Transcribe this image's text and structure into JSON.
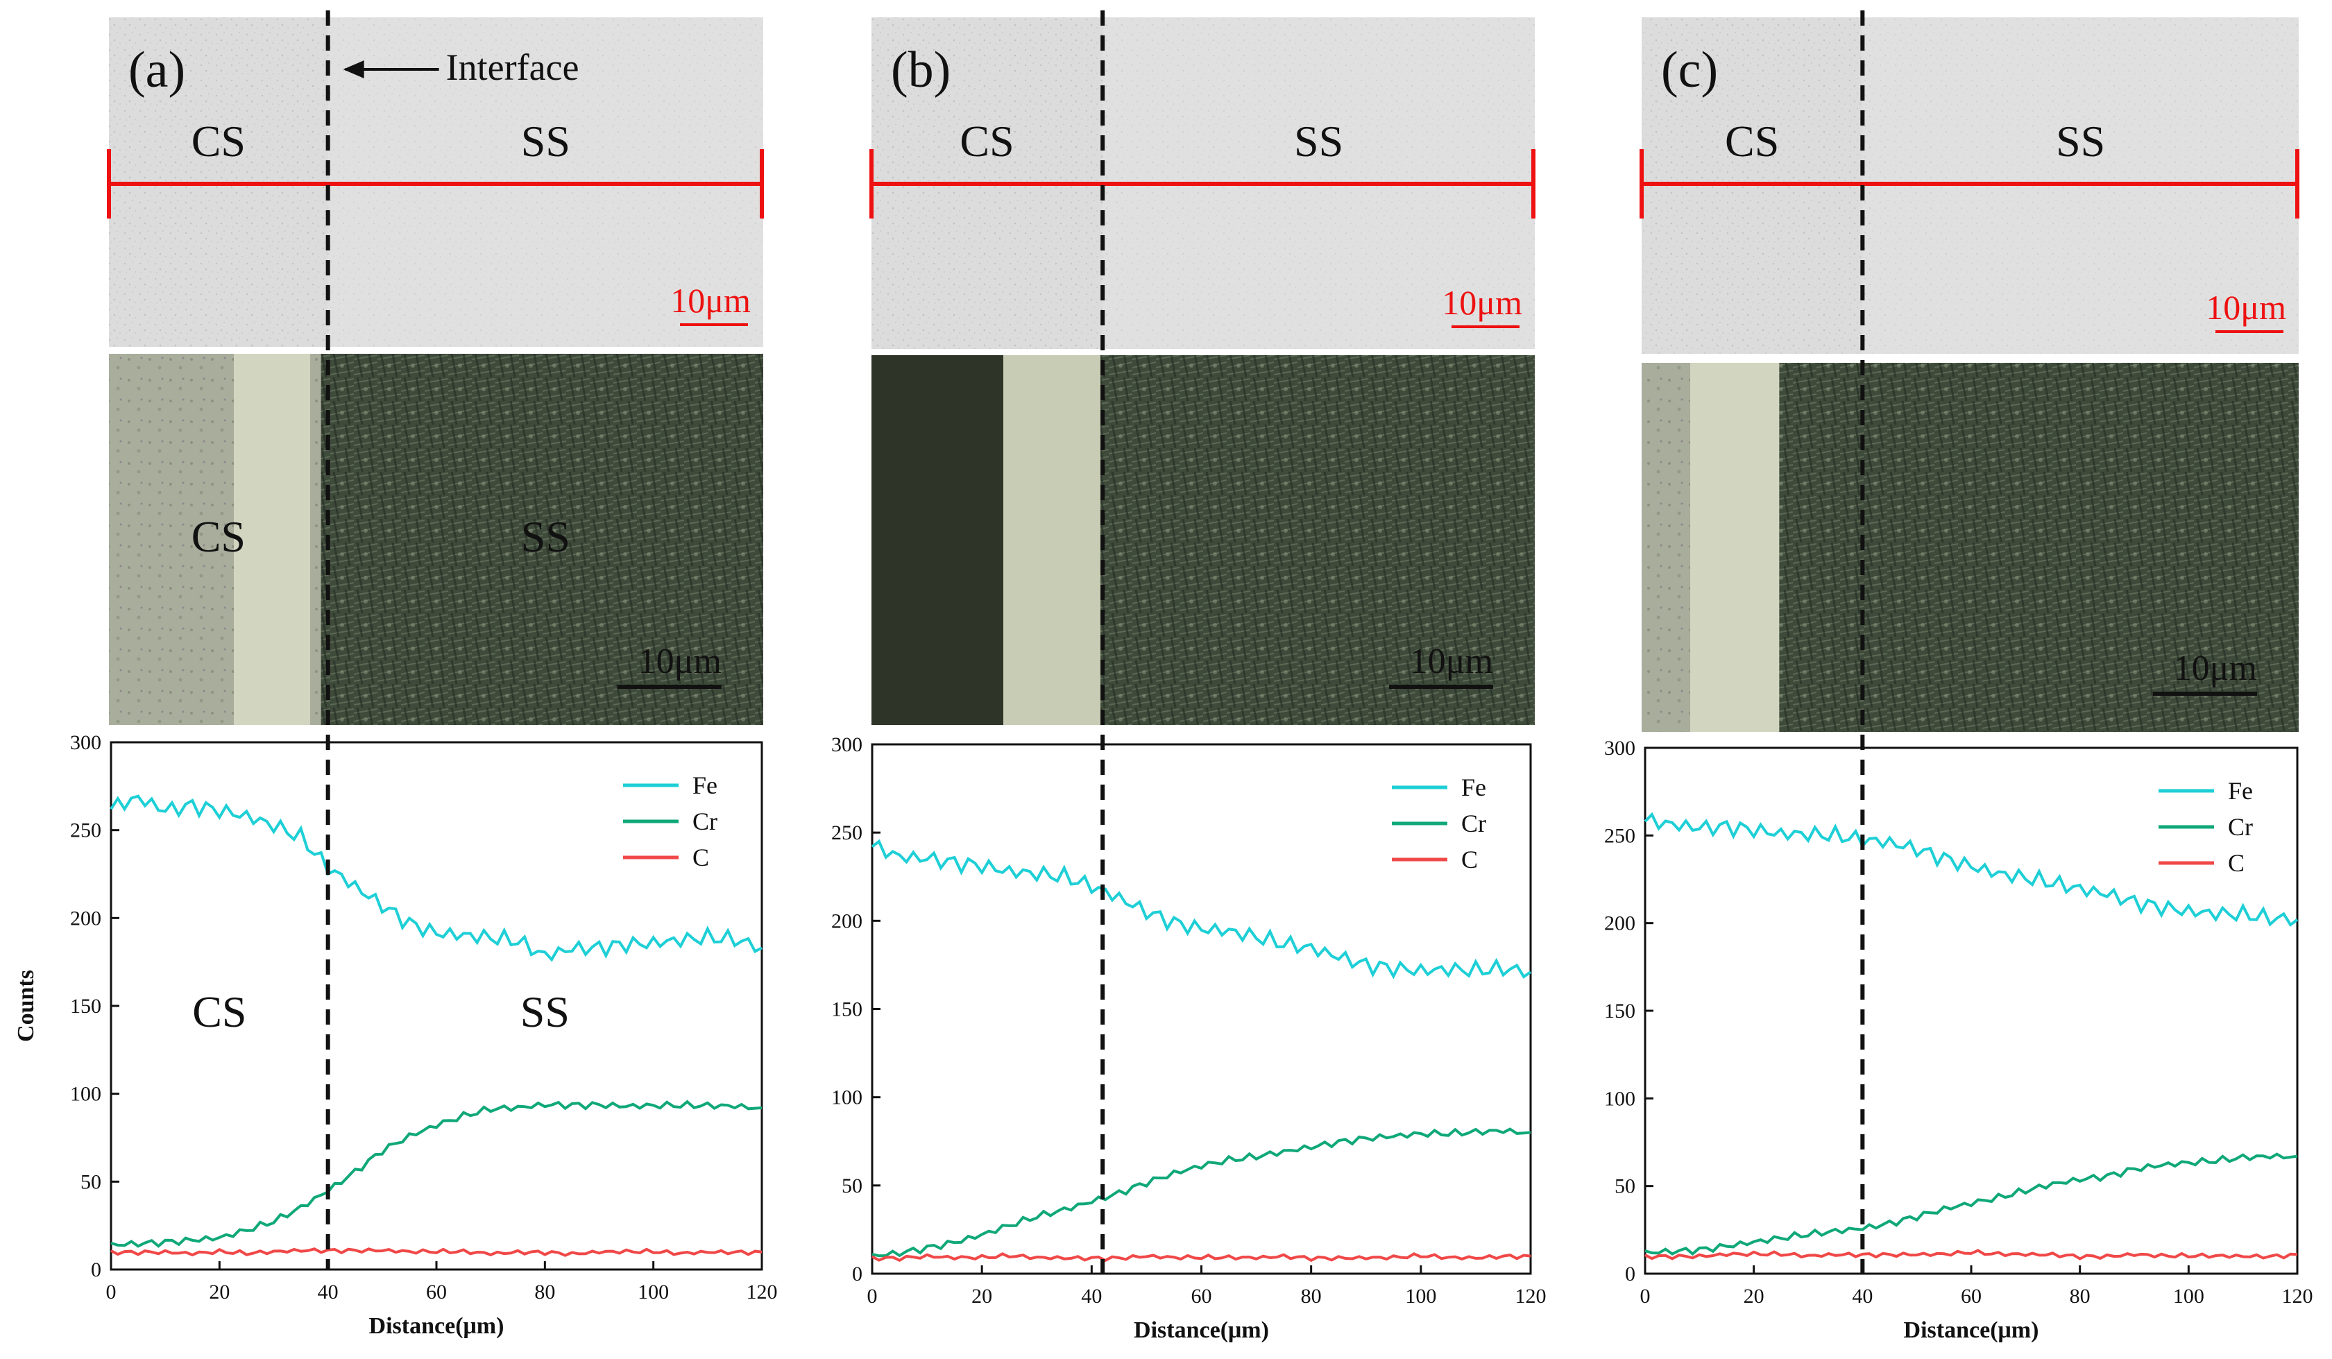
{
  "chart_data": [
    {
      "type": "line",
      "panel_label": "(a)",
      "interface_label": "Interface",
      "sem_labels": [
        "CS",
        "SS"
      ],
      "om_labels": [
        "CS",
        "SS"
      ],
      "plot_labels": [
        "CS",
        "SS"
      ],
      "scale_bar_sem": "10μm",
      "scale_bar_om": "10μm",
      "interface_x": 40,
      "xlabel": "Distance(μm)",
      "ylabel": "Counts",
      "xlim": [
        0,
        120
      ],
      "ylim": [
        0,
        300
      ],
      "xticks": [
        0,
        20,
        40,
        60,
        80,
        100,
        120
      ],
      "yticks": [
        0,
        50,
        100,
        150,
        200,
        250,
        300
      ],
      "x": [
        0,
        5,
        10,
        15,
        20,
        25,
        30,
        35,
        40,
        45,
        50,
        55,
        60,
        65,
        70,
        75,
        80,
        85,
        90,
        95,
        100,
        105,
        110,
        115,
        120
      ],
      "series": [
        {
          "name": "Fe",
          "color": "#1ecfd6",
          "values": [
            262,
            268,
            262,
            265,
            262,
            258,
            252,
            245,
            228,
            218,
            208,
            198,
            192,
            190,
            188,
            186,
            178,
            183,
            184,
            186,
            186,
            187,
            188,
            187,
            183
          ]
        },
        {
          "name": "Cr",
          "color": "#10a878",
          "values": [
            14,
            15,
            16,
            17,
            18,
            22,
            27,
            35,
            45,
            56,
            68,
            76,
            82,
            87,
            91,
            92,
            94,
            94,
            94,
            93,
            93,
            93,
            93,
            93,
            92
          ]
        },
        {
          "name": "C",
          "color": "#f04848",
          "values": [
            10,
            10,
            10,
            9,
            10,
            9,
            10,
            11,
            11,
            11,
            11,
            10,
            10,
            10,
            9,
            10,
            10,
            9,
            10,
            10,
            10,
            9,
            10,
            10,
            10
          ]
        }
      ]
    },
    {
      "type": "line",
      "panel_label": "(b)",
      "sem_labels": [
        "CS",
        "SS"
      ],
      "scale_bar_sem": "10μm",
      "scale_bar_om": "10μm",
      "interface_x": 42,
      "xlabel": "Distance(μm)",
      "ylabel": "",
      "xlim": [
        0,
        120
      ],
      "ylim": [
        0,
        300
      ],
      "xticks": [
        0,
        20,
        40,
        60,
        80,
        100,
        120
      ],
      "yticks": [
        0,
        50,
        100,
        150,
        200,
        250,
        300
      ],
      "x": [
        0,
        5,
        10,
        15,
        20,
        25,
        30,
        35,
        40,
        45,
        50,
        55,
        60,
        65,
        70,
        75,
        80,
        85,
        90,
        95,
        100,
        105,
        110,
        115,
        120
      ],
      "series": [
        {
          "name": "Fe",
          "color": "#1ecfd6",
          "values": [
            242,
            236,
            236,
            234,
            232,
            228,
            226,
            224,
            219,
            213,
            206,
            200,
            196,
            194,
            190,
            186,
            184,
            180,
            176,
            174,
            172,
            172,
            171,
            172,
            171
          ]
        },
        {
          "name": "Cr",
          "color": "#10a878",
          "values": [
            10,
            12,
            15,
            18,
            22,
            27,
            32,
            36,
            41,
            46,
            52,
            57,
            61,
            64,
            66,
            69,
            72,
            75,
            77,
            78,
            79,
            79,
            80,
            81,
            80
          ]
        },
        {
          "name": "C",
          "color": "#f04848",
          "values": [
            9,
            9,
            10,
            9,
            9,
            10,
            9,
            9,
            9,
            9,
            10,
            9,
            9,
            9,
            9,
            10,
            9,
            9,
            9,
            9,
            10,
            9,
            9,
            10,
            10
          ]
        }
      ]
    },
    {
      "type": "line",
      "panel_label": "(c)",
      "sem_labels": [
        "CS",
        "SS"
      ],
      "scale_bar_sem": "10μm",
      "scale_bar_om": "10μm",
      "interface_x": 40,
      "xlabel": "Distance(μm)",
      "ylabel": "",
      "xlim": [
        0,
        120
      ],
      "ylim": [
        0,
        300
      ],
      "xticks": [
        0,
        20,
        40,
        60,
        80,
        100,
        120
      ],
      "yticks": [
        0,
        50,
        100,
        150,
        200,
        250,
        300
      ],
      "x": [
        0,
        5,
        10,
        15,
        20,
        25,
        30,
        35,
        40,
        45,
        50,
        55,
        60,
        65,
        70,
        75,
        80,
        85,
        90,
        95,
        100,
        105,
        110,
        115,
        120
      ],
      "series": [
        {
          "name": "Fe",
          "color": "#1ecfd6",
          "values": [
            258,
            256,
            255,
            256,
            254,
            251,
            250,
            249,
            247,
            246,
            243,
            238,
            233,
            228,
            225,
            222,
            219,
            217,
            213,
            210,
            207,
            205,
            204,
            202,
            202
          ]
        },
        {
          "name": "Cr",
          "color": "#10a878",
          "values": [
            12,
            13,
            14,
            16,
            18,
            20,
            22,
            24,
            26,
            29,
            33,
            37,
            40,
            43,
            47,
            51,
            54,
            56,
            60,
            62,
            63,
            64,
            66,
            67,
            67
          ]
        },
        {
          "name": "C",
          "color": "#f04848",
          "values": [
            10,
            10,
            10,
            11,
            11,
            11,
            10,
            11,
            11,
            11,
            11,
            11,
            12,
            11,
            11,
            11,
            10,
            10,
            11,
            10,
            10,
            10,
            10,
            10,
            11
          ]
        }
      ]
    }
  ]
}
